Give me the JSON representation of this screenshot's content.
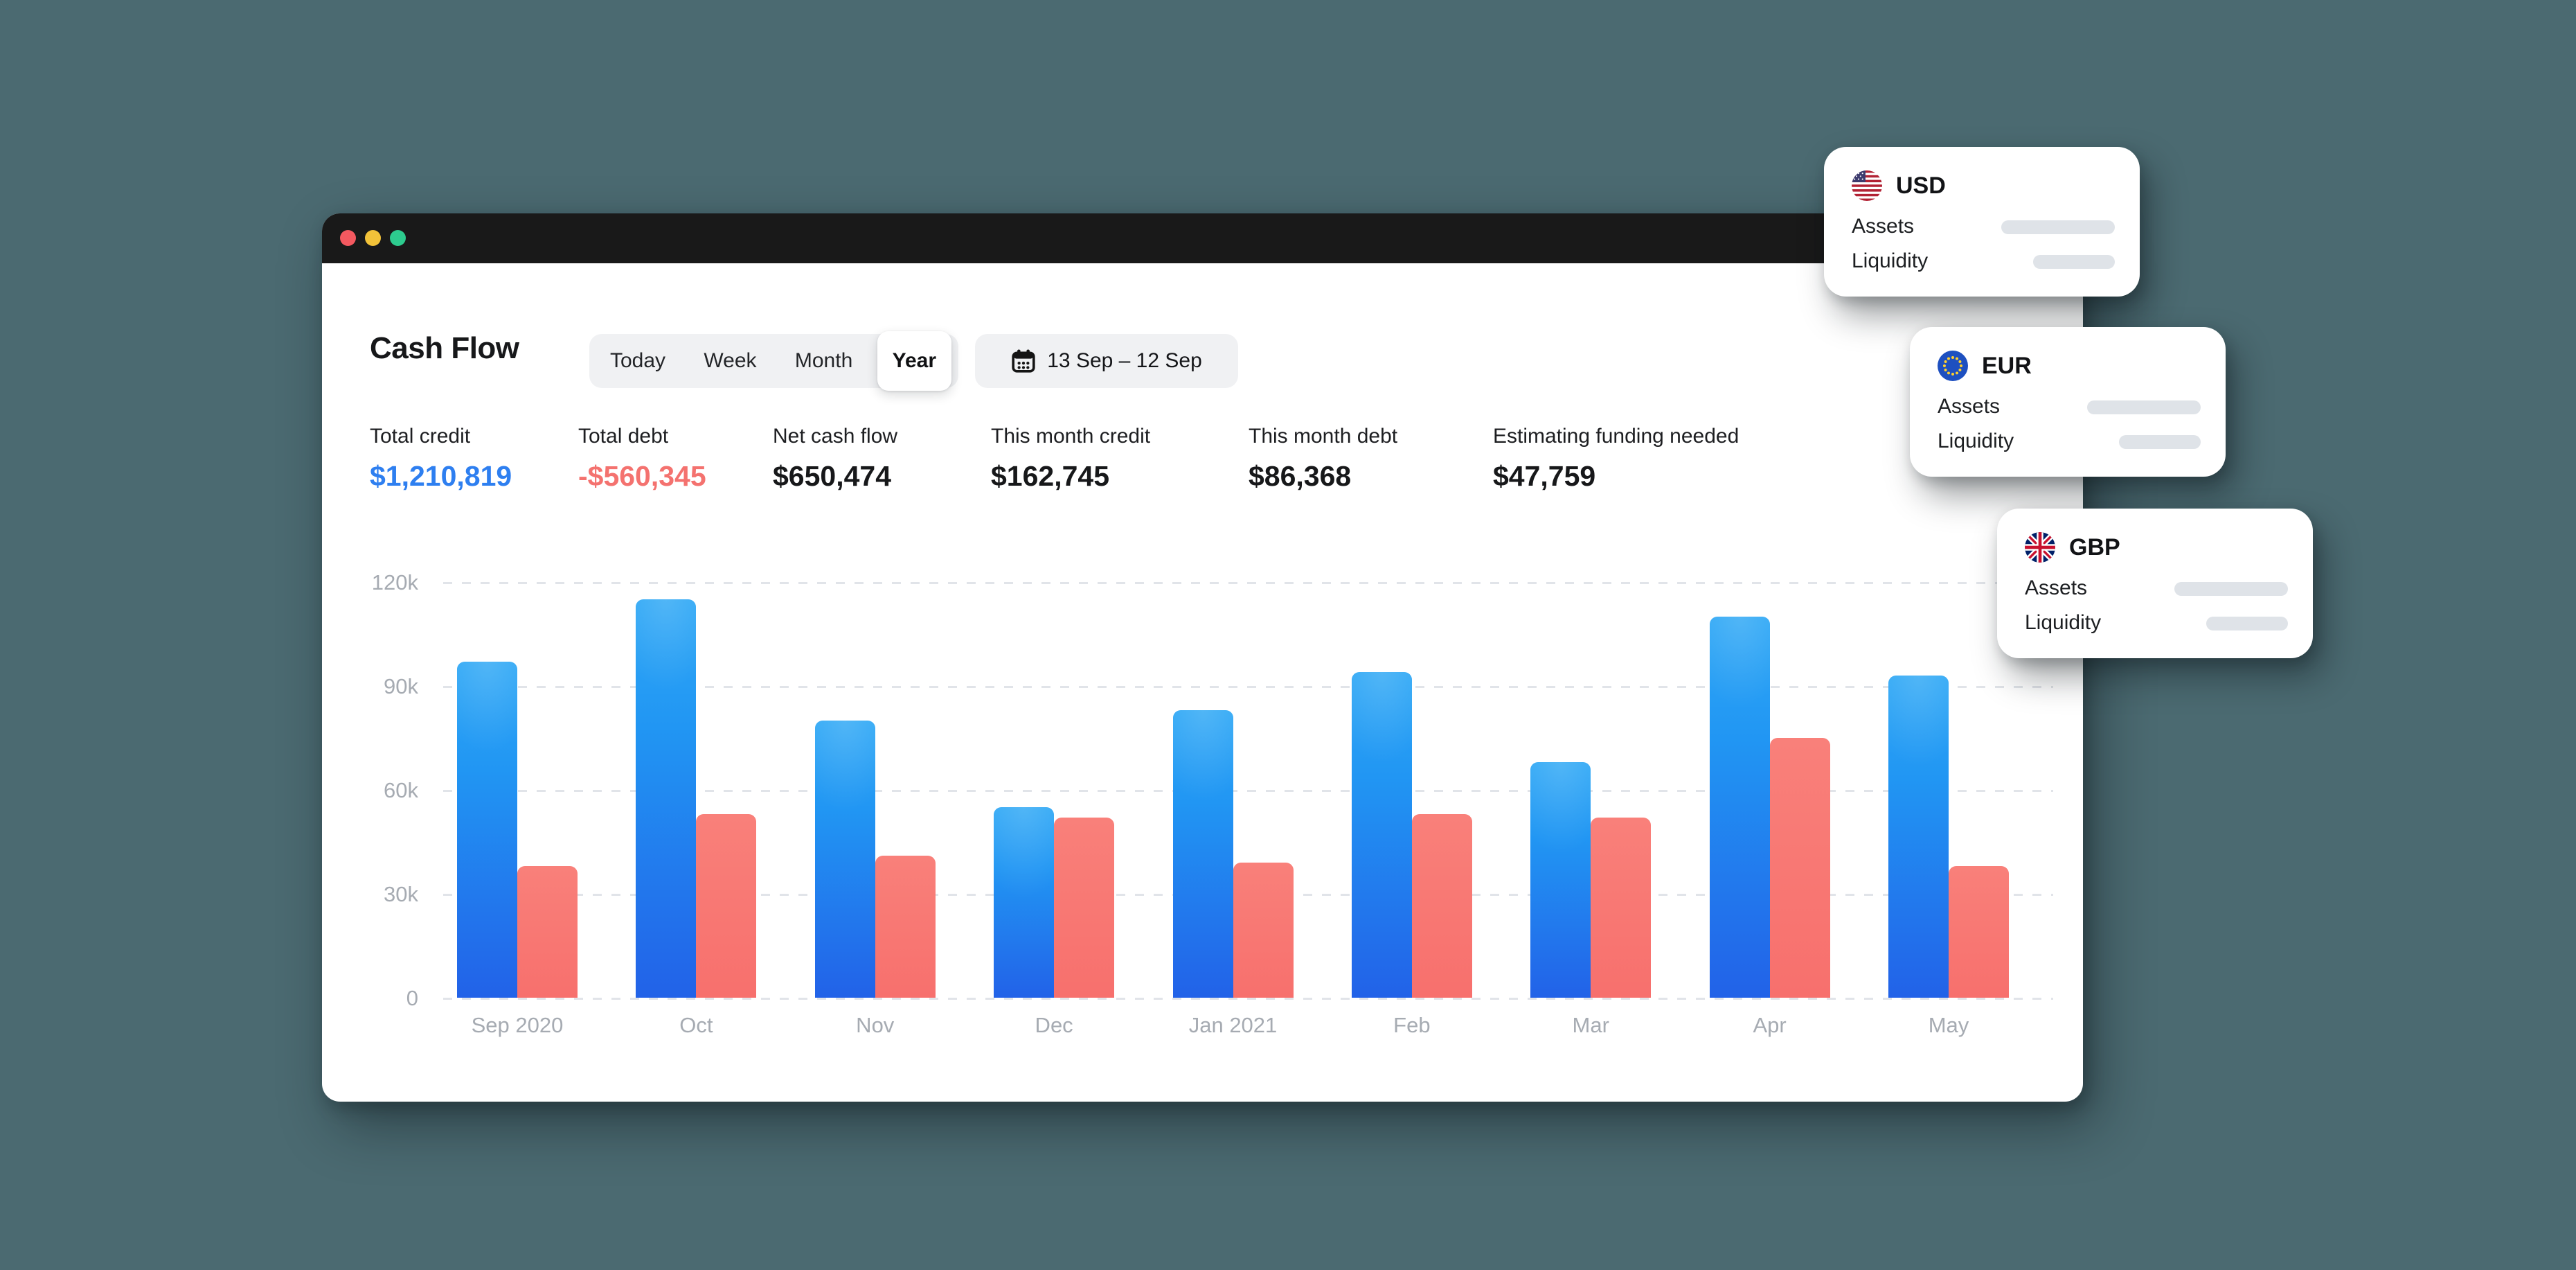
{
  "colors": {
    "background": "#4b6a71",
    "titlebar": "#191919",
    "traffic_red": "#f45960",
    "traffic_yellow": "#f2c239",
    "traffic_green": "#2dcb8e",
    "accent_blue": "#2e7ff0",
    "accent_red": "#f4726f",
    "bar_credit_top": "#2fa8f5",
    "bar_credit_bottom": "#2262e8",
    "bar_debt": "#f7706d",
    "chip_background": "#f0f1f3",
    "skeleton_pill": "#dfe3e8",
    "axis_label": "#a6abb2"
  },
  "header": {
    "title": "Cash Flow",
    "tabs": {
      "items": [
        "Today",
        "Week",
        "Month",
        "Year"
      ],
      "selected": "Year"
    },
    "date_range": "13 Sep – 12 Sep"
  },
  "stats": [
    {
      "label": "Total credit",
      "value": "$1,210,819",
      "tone": "credit"
    },
    {
      "label": "Total debt",
      "value": "-$560,345",
      "tone": "debt"
    },
    {
      "label": "Net cash flow",
      "value": "$650,474",
      "tone": "neutral"
    },
    {
      "label": "This month credit",
      "value": "$162,745",
      "tone": "neutral"
    },
    {
      "label": "This month debt",
      "value": "$86,368",
      "tone": "neutral"
    },
    {
      "label": "Estimating funding needed",
      "value": "$47,759",
      "tone": "neutral"
    }
  ],
  "chart_data": {
    "type": "bar",
    "title": "Cash Flow by month",
    "categories": [
      "Sep 2020",
      "Oct",
      "Nov",
      "Dec",
      "Jan 2021",
      "Feb",
      "Mar",
      "Apr",
      "May"
    ],
    "series": [
      {
        "name": "credit",
        "values": [
          97000,
          115000,
          80000,
          55000,
          83000,
          94000,
          68000,
          110000,
          93000
        ]
      },
      {
        "name": "debt",
        "values": [
          38000,
          53000,
          41000,
          52000,
          39000,
          53000,
          52000,
          75000,
          38000
        ]
      }
    ],
    "xlabel": "",
    "ylabel": "",
    "ylim": [
      0,
      120000
    ],
    "y_ticks": [
      "120k",
      "90k",
      "60k",
      "30k",
      "0"
    ],
    "grid": "horizontal-dashed",
    "legend": "none"
  },
  "currency_cards": [
    {
      "code": "USD",
      "flag": "us-flag",
      "assets_label": "Assets",
      "liquidity_label": "Liquidity"
    },
    {
      "code": "EUR",
      "flag": "eu-flag",
      "assets_label": "Assets",
      "liquidity_label": "Liquidity"
    },
    {
      "code": "GBP",
      "flag": "uk-flag",
      "assets_label": "Assets",
      "liquidity_label": "Liquidity"
    }
  ]
}
